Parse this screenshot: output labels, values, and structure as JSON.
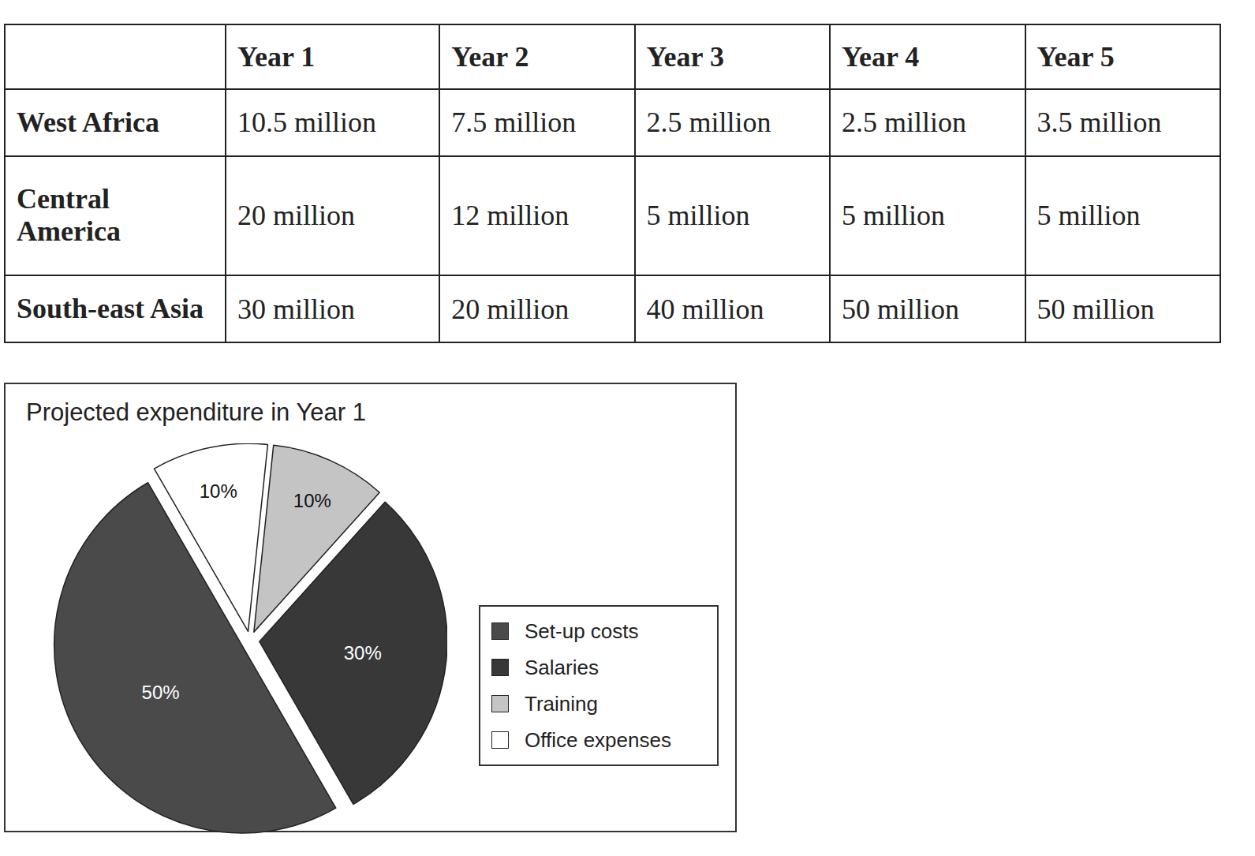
{
  "table": {
    "header": [
      "",
      "Year 1",
      "Year 2",
      "Year 3",
      "Year 4",
      "Year 5"
    ],
    "rows": [
      [
        "West Africa",
        "10.5 million",
        "7.5 million",
        "2.5 million",
        "2.5 million",
        "3.5 million"
      ],
      [
        "Central America",
        "20 million",
        "12 million",
        "5 million",
        "5 million",
        "5 million"
      ],
      [
        "South-east Asia",
        "30 million",
        "20 million",
        "40 million",
        "50 million",
        "50 million"
      ]
    ]
  },
  "chart_data": {
    "type": "pie",
    "title": "Projected expenditure in Year 1",
    "categories": [
      "Set-up costs",
      "Salaries",
      "Training",
      "Office expenses"
    ],
    "values": [
      50,
      30,
      10,
      10
    ],
    "value_labels": [
      "50%",
      "30%",
      "10%",
      "10%"
    ],
    "colors": [
      "#4a4a4a",
      "#383838",
      "#c4c4c4",
      "#ffffff"
    ],
    "data_labels": true,
    "legend": "right"
  }
}
